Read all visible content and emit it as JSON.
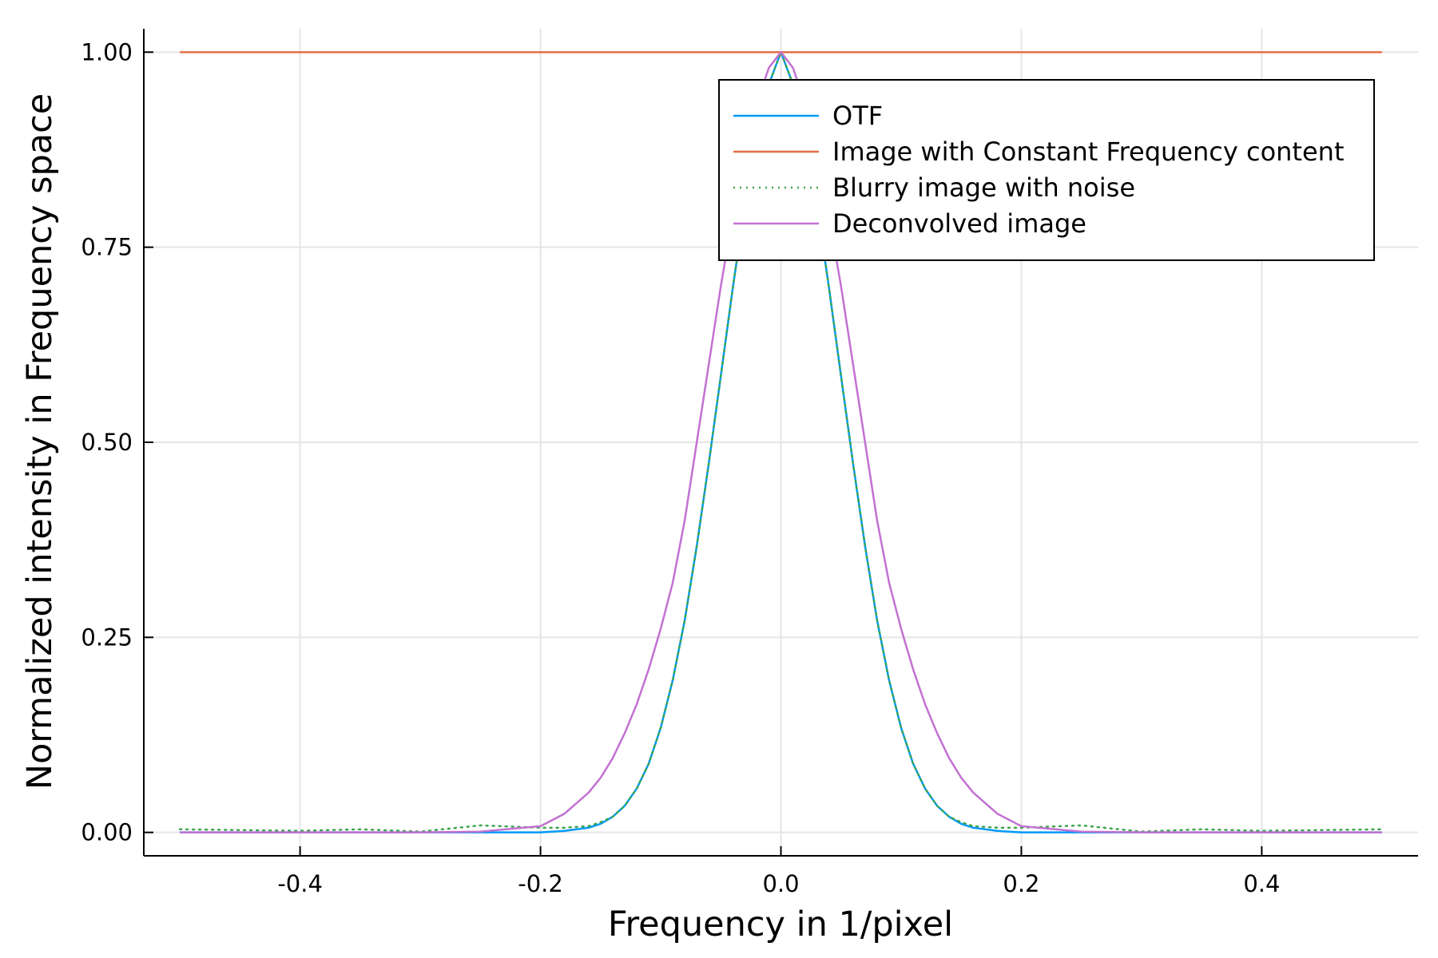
{
  "chart_data": {
    "type": "line",
    "title": "",
    "xlabel": "Frequency in 1/pixel",
    "ylabel": "Normalized intensity in Frequency space",
    "xlim": [
      -0.53,
      0.53
    ],
    "ylim": [
      -0.03,
      1.03
    ],
    "x_ticks": [
      -0.4,
      -0.2,
      0.0,
      0.2,
      0.4
    ],
    "x_tick_labels": [
      "-0.4",
      "-0.2",
      "0.0",
      "0.2",
      "0.4"
    ],
    "y_ticks": [
      0.0,
      0.25,
      0.5,
      0.75,
      1.0
    ],
    "y_tick_labels": [
      "0.00",
      "0.25",
      "0.50",
      "0.75",
      "1.00"
    ],
    "grid": true,
    "legend_position": "top-right",
    "x": [
      -0.5,
      -0.45,
      -0.4,
      -0.35,
      -0.3,
      -0.25,
      -0.2,
      -0.18,
      -0.16,
      -0.15,
      -0.14,
      -0.13,
      -0.12,
      -0.11,
      -0.1,
      -0.09,
      -0.08,
      -0.07,
      -0.06,
      -0.05,
      -0.04,
      -0.03,
      -0.02,
      -0.01,
      0.0,
      0.01,
      0.02,
      0.03,
      0.04,
      0.05,
      0.06,
      0.07,
      0.08,
      0.09,
      0.1,
      0.11,
      0.12,
      0.13,
      0.14,
      0.15,
      0.16,
      0.18,
      0.2,
      0.25,
      0.3,
      0.35,
      0.4,
      0.45,
      0.5
    ],
    "series": [
      {
        "name": "OTF",
        "color": "#009af9",
        "style": "solid",
        "values": [
          0.0,
          0.0,
          0.0,
          0.0,
          0.0,
          0.0,
          0.0,
          0.002,
          0.006,
          0.011,
          0.02,
          0.034,
          0.056,
          0.088,
          0.134,
          0.195,
          0.272,
          0.367,
          0.473,
          0.585,
          0.698,
          0.804,
          0.893,
          0.959,
          1.0,
          0.959,
          0.893,
          0.804,
          0.698,
          0.585,
          0.473,
          0.367,
          0.272,
          0.195,
          0.134,
          0.088,
          0.056,
          0.034,
          0.02,
          0.011,
          0.006,
          0.002,
          0.0,
          0.0,
          0.0,
          0.0,
          0.0,
          0.0,
          0.0
        ]
      },
      {
        "name": "Image with Constant Frequency content",
        "color": "#e26f46",
        "style": "solid",
        "values": [
          1.0,
          1.0,
          1.0,
          1.0,
          1.0,
          1.0,
          1.0,
          1.0,
          1.0,
          1.0,
          1.0,
          1.0,
          1.0,
          1.0,
          1.0,
          1.0,
          1.0,
          1.0,
          1.0,
          1.0,
          1.0,
          1.0,
          1.0,
          1.0,
          1.0,
          1.0,
          1.0,
          1.0,
          1.0,
          1.0,
          1.0,
          1.0,
          1.0,
          1.0,
          1.0,
          1.0,
          1.0,
          1.0,
          1.0,
          1.0,
          1.0,
          1.0,
          1.0,
          1.0,
          1.0,
          1.0,
          1.0,
          1.0,
          1.0
        ]
      },
      {
        "name": "Blurry image with noise",
        "color": "#3da44d",
        "style": "dotted",
        "values": [
          0.004,
          0.003,
          0.002,
          0.004,
          0.001,
          0.009,
          0.006,
          0.006,
          0.008,
          0.013,
          0.02,
          0.034,
          0.056,
          0.088,
          0.134,
          0.195,
          0.272,
          0.367,
          0.473,
          0.585,
          0.698,
          0.804,
          0.893,
          0.959,
          1.0,
          0.959,
          0.893,
          0.804,
          0.698,
          0.585,
          0.473,
          0.367,
          0.272,
          0.195,
          0.134,
          0.088,
          0.056,
          0.034,
          0.02,
          0.013,
          0.008,
          0.006,
          0.006,
          0.009,
          0.001,
          0.004,
          0.002,
          0.003,
          0.004
        ]
      },
      {
        "name": "Deconvolved image",
        "color": "#c271d2",
        "style": "solid",
        "values": [
          0.0,
          0.0,
          0.0,
          0.0,
          0.0,
          0.001,
          0.008,
          0.024,
          0.051,
          0.07,
          0.095,
          0.127,
          0.164,
          0.209,
          0.261,
          0.32,
          0.4,
          0.5,
          0.6,
          0.7,
          0.79,
          0.87,
          0.935,
          0.98,
          1.0,
          0.98,
          0.935,
          0.87,
          0.79,
          0.7,
          0.6,
          0.5,
          0.4,
          0.32,
          0.261,
          0.209,
          0.164,
          0.127,
          0.095,
          0.07,
          0.051,
          0.024,
          0.008,
          0.001,
          0.0,
          0.0,
          0.0,
          0.0,
          0.0
        ]
      }
    ]
  }
}
